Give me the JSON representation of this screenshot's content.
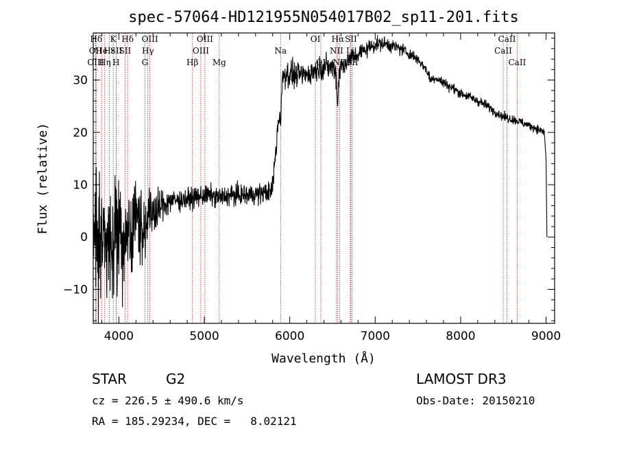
{
  "chart_data": {
    "type": "line",
    "title": "spec-57064-HD121955N054017B02_sp11-201.fits",
    "xlabel": "Wavelength (Å)",
    "ylabel": "Flux (relative)",
    "xlim": [
      3700,
      9100
    ],
    "ylim": [
      -16.5,
      39
    ],
    "x_ticks": [
      4000,
      5000,
      6000,
      7000,
      8000,
      9000
    ],
    "x_tick_labels": [
      "4000",
      "5000",
      "6000",
      "7000",
      "8000",
      "9000"
    ],
    "y_ticks": [
      -10,
      0,
      10,
      20,
      30
    ],
    "y_tick_labels": [
      "−10",
      "0",
      "10",
      "20",
      "30"
    ],
    "series": [
      {
        "name": "spectrum",
        "color": "#000000",
        "anchors": [
          [
            3700,
            2
          ],
          [
            3730,
            3
          ],
          [
            3760,
            -4
          ],
          [
            3800,
            1
          ],
          [
            3850,
            -2
          ],
          [
            3900,
            0
          ],
          [
            3950,
            -1
          ],
          [
            4000,
            1
          ],
          [
            4050,
            -1
          ],
          [
            4100,
            1
          ],
          [
            4150,
            2
          ],
          [
            4200,
            4
          ],
          [
            4250,
            3
          ],
          [
            4300,
            1
          ],
          [
            4350,
            3
          ],
          [
            4400,
            5
          ],
          [
            4450,
            5
          ],
          [
            4500,
            6
          ],
          [
            4600,
            7
          ],
          [
            4700,
            7
          ],
          [
            4800,
            7.3
          ],
          [
            4900,
            7.5
          ],
          [
            5000,
            8
          ],
          [
            5100,
            7.8
          ],
          [
            5200,
            7.5
          ],
          [
            5300,
            8
          ],
          [
            5400,
            8
          ],
          [
            5500,
            8
          ],
          [
            5600,
            8.2
          ],
          [
            5700,
            8.5
          ],
          [
            5780,
            8.5
          ],
          [
            5800,
            10
          ],
          [
            5840,
            17
          ],
          [
            5880,
            25
          ],
          [
            5910,
            30
          ],
          [
            5940,
            31.5
          ],
          [
            6000,
            31
          ],
          [
            6100,
            31
          ],
          [
            6200,
            31
          ],
          [
            6300,
            32
          ],
          [
            6400,
            32.5
          ],
          [
            6500,
            32.5
          ],
          [
            6560,
            31
          ],
          [
            6600,
            32.5
          ],
          [
            6700,
            34
          ],
          [
            6800,
            35
          ],
          [
            6900,
            36
          ],
          [
            7000,
            36.8
          ],
          [
            7100,
            37
          ],
          [
            7200,
            36.5
          ],
          [
            7300,
            36
          ],
          [
            7400,
            35
          ],
          [
            7500,
            34
          ],
          [
            7600,
            32
          ],
          [
            7650,
            30
          ],
          [
            7700,
            30.5
          ],
          [
            7800,
            29.5
          ],
          [
            7900,
            28.5
          ],
          [
            8000,
            27.5
          ],
          [
            8100,
            26.8
          ],
          [
            8200,
            26
          ],
          [
            8300,
            25.2
          ],
          [
            8400,
            24
          ],
          [
            8500,
            23
          ],
          [
            8600,
            22.5
          ],
          [
            8700,
            22
          ],
          [
            8800,
            21.3
          ],
          [
            8900,
            20.7
          ],
          [
            8980,
            20
          ],
          [
            9000,
            15
          ],
          [
            9010,
            0
          ]
        ],
        "noise_profile": [
          [
            3700,
            6
          ],
          [
            3900,
            6
          ],
          [
            4100,
            5
          ],
          [
            4200,
            3.5
          ],
          [
            4400,
            2.5
          ],
          [
            4500,
            1.5
          ],
          [
            4700,
            1
          ],
          [
            5800,
            1
          ],
          [
            5900,
            1.6
          ],
          [
            6100,
            1.1
          ],
          [
            6600,
            1.1
          ],
          [
            7000,
            0.7
          ],
          [
            7600,
            0.5
          ],
          [
            9000,
            0.4
          ]
        ],
        "step": 3,
        "seed": 57064
      }
    ],
    "features": [
      {
        "absorption": [
          6560,
          5.5,
          8
        ]
      },
      {
        "absorption": [
          5893,
          4,
          10
        ]
      }
    ]
  },
  "spectral_lines": [
    {
      "label": "Hδ",
      "wavelength": 3734,
      "row": 1
    },
    {
      "label": "OII",
      "wavelength": 3727,
      "row": 2
    },
    {
      "label": "OIII",
      "wavelength": 3727,
      "row": 3
    },
    {
      "label": "He",
      "wavelength": 3798,
      "row": 2
    },
    {
      "label": "Hη",
      "wavelength": 3835,
      "row": 3
    },
    {
      "label": "K",
      "wavelength": 3934,
      "row": 1
    },
    {
      "label": "Hε",
      "wavelength": 3889,
      "row": 2
    },
    {
      "label": "SII",
      "wavelength": 3970,
      "row": 2
    },
    {
      "label": "H",
      "wavelength": 3968,
      "row": 3
    },
    {
      "label": "Hδ",
      "wavelength": 4102,
      "row": 1
    },
    {
      "label": "SII",
      "wavelength": 4072,
      "row": 2
    },
    {
      "label": "OIII",
      "wavelength": 4363,
      "row": 1
    },
    {
      "label": "Hγ",
      "wavelength": 4340,
      "row": 2
    },
    {
      "label": "G",
      "wavelength": 4305,
      "row": 3
    },
    {
      "label": "OIII",
      "wavelength": 5007,
      "row": 1
    },
    {
      "label": "OIII",
      "wavelength": 4959,
      "row": 2
    },
    {
      "label": "Hβ",
      "wavelength": 4861,
      "row": 3
    },
    {
      "label": "Mg",
      "wavelength": 5175,
      "row": 3
    },
    {
      "label": "Na",
      "wavelength": 5893,
      "row": 2
    },
    {
      "label": "OI",
      "wavelength": 6300,
      "row": 1
    },
    {
      "label": "OI",
      "wavelength": 6364,
      "row": 3
    },
    {
      "label": "Hα",
      "wavelength": 6563,
      "row": 1
    },
    {
      "label": "NII",
      "wavelength": 6548,
      "row": 2
    },
    {
      "label": "NII",
      "wavelength": 6584,
      "row": 3
    },
    {
      "label": "SII",
      "wavelength": 6716,
      "row": 1
    },
    {
      "label": "Li",
      "wavelength": 6708,
      "row": 2
    },
    {
      "label": "SII",
      "wavelength": 6731,
      "row": 3
    },
    {
      "label": "CaII",
      "wavelength": 8542,
      "row": 1
    },
    {
      "label": "CaII",
      "wavelength": 8498,
      "row": 2
    },
    {
      "label": "CaII",
      "wavelength": 8662,
      "row": 3
    }
  ],
  "colors": {
    "line_marker": "#b22222",
    "spectrum": "#000000",
    "axis": "#000000"
  },
  "info": {
    "object_type": "STAR",
    "subclass": "G2",
    "survey": "LAMOST DR3",
    "cz": "cz = 226.5 ± 490.6 km/s",
    "obs_date": "Obs-Date: 20150210",
    "coords": "RA = 185.29234, DEC =   8.02121"
  }
}
